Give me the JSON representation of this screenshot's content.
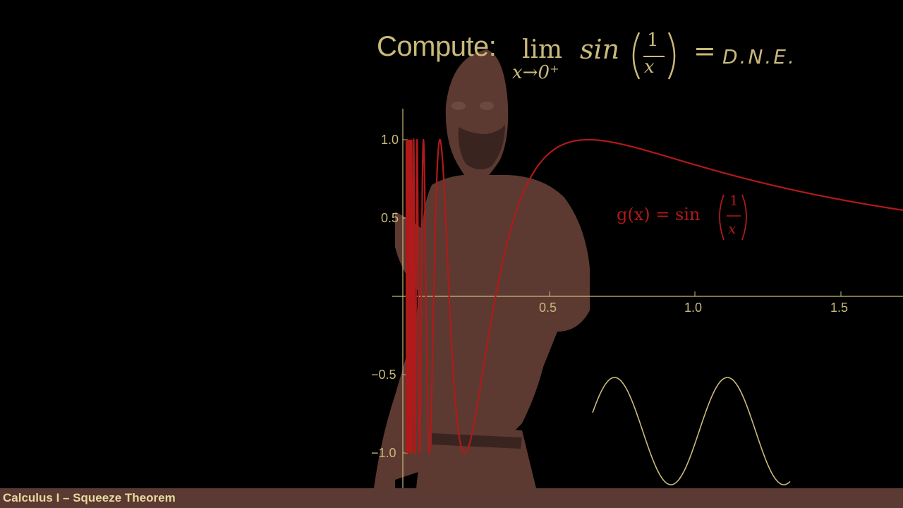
{
  "header": {
    "compute_label": "Compute:",
    "lim_word": "lim",
    "lim_subscript": "x→0⁺",
    "function_name": "sin",
    "fraction_numerator": "1",
    "fraction_denominator": "x",
    "equals": "=",
    "answer": "D.N.E."
  },
  "graph": {
    "y_ticks": [
      "1.0",
      "0.5",
      "−0.5",
      "−1.0"
    ],
    "x_ticks": [
      "0.5",
      "1.0",
      "1.5"
    ],
    "function_label_lhs": "g(x) = sin",
    "function_label_num": "1",
    "function_label_den": "x",
    "curve_color": "#b01a1a",
    "axis_color": "#c9b97a"
  },
  "footer": {
    "title": "Calculus I – Squeeze Theorem"
  },
  "colors": {
    "background": "#000000",
    "ink": "#c9b97a",
    "footer_bar": "#5a3a32",
    "lecturer": "#5c3a31"
  }
}
